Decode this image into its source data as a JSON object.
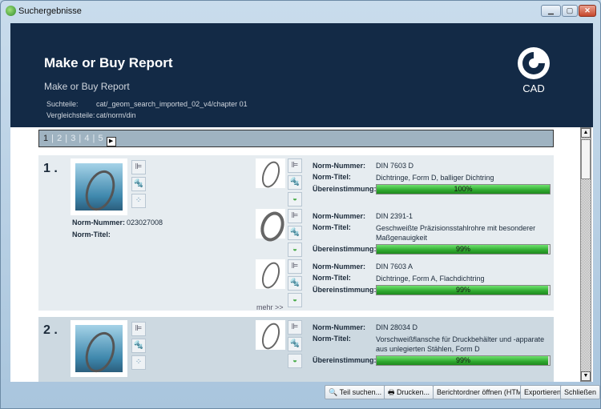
{
  "window": {
    "title": "Suchergebnisse"
  },
  "header": {
    "title": "Make or Buy Report",
    "subtitle": "Make or Buy Report",
    "search_parts_label": "Suchteile:",
    "search_parts_value": "cat/_geom_search_imported_02_v4/chapter 01",
    "compare_parts_label": "Vergleichsteile:",
    "compare_parts_value": "cat/norm/din",
    "logo_text": "CAD"
  },
  "pager": {
    "pages": [
      "1",
      "2",
      "3",
      "4",
      "5"
    ],
    "current": "1",
    "next_icon": "triangle-right-icon"
  },
  "labels": {
    "norm_number": "Norm-Nummer:",
    "norm_title": "Norm-Titel:",
    "match": "Übereinstimmung:",
    "more": "mehr >>"
  },
  "results": [
    {
      "rank": "1 .",
      "norm_number": "023027008",
      "norm_title": "",
      "matches": [
        {
          "norm_number": "DIN 7603 D",
          "norm_title": "Dichtringe, Form D, balliger Dichtring",
          "match": "100%",
          "match_value": 100
        },
        {
          "norm_number": "DIN 2391-1",
          "norm_title": "Geschweißte Präzisionsstahlrohre mit besonderer Maßgenauigkeit",
          "match": "99%",
          "match_value": 99
        },
        {
          "norm_number": "DIN 7603 A",
          "norm_title": "Dichtringe, Form A, Flachdichtring",
          "match": "99%",
          "match_value": 99
        }
      ]
    },
    {
      "rank": "2 .",
      "matches": [
        {
          "norm_number": "DIN 28034 D",
          "norm_title": "Vorschweißflansche für Druckbehälter und -apparate aus unlegierten Stählen, Form D",
          "match": "99%",
          "match_value": 99
        }
      ]
    }
  ],
  "buttons": {
    "find_part": "Teil suchen...",
    "print": "Drucken...",
    "open_folder": "Berichtordner öffnen (HTML)",
    "export": "Exportieren",
    "close": "Schließen"
  }
}
